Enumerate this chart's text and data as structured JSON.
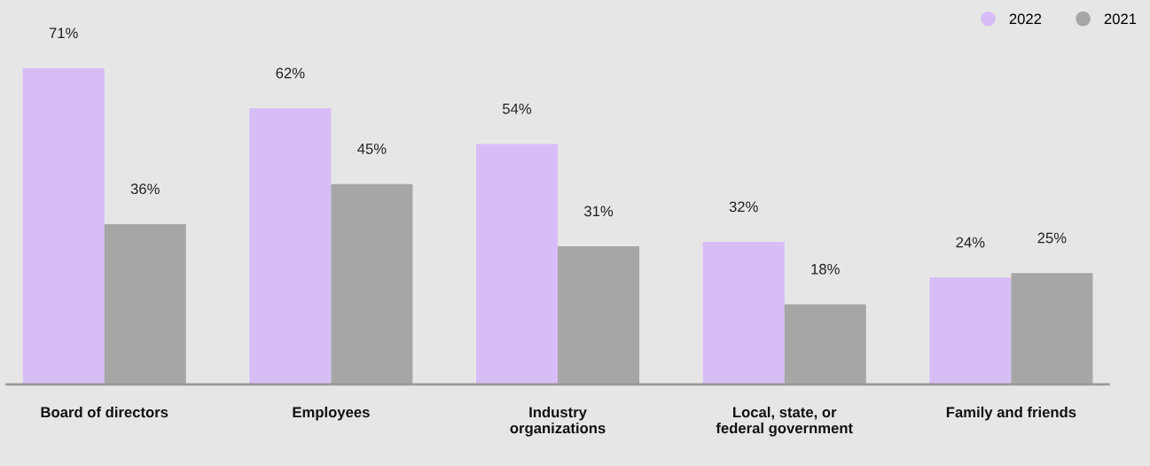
{
  "chart_data": {
    "type": "bar",
    "categories": [
      "Board of directors",
      "Employees",
      "Industry\norganizations",
      "Local, state, or\nfederal government",
      "Family and friends"
    ],
    "series": [
      {
        "name": "2022",
        "color": "#d7bdf5",
        "values": [
          71,
          62,
          54,
          32,
          24
        ],
        "value_labels": [
          "71%",
          "62%",
          "54%",
          "32%",
          "24%"
        ]
      },
      {
        "name": "2021",
        "color": "#a6a6a6",
        "values": [
          36,
          45,
          31,
          18,
          25
        ],
        "value_labels": [
          "36%",
          "45%",
          "31%",
          "18%",
          "25%"
        ]
      }
    ],
    "legend": "top right",
    "grid": false
  }
}
